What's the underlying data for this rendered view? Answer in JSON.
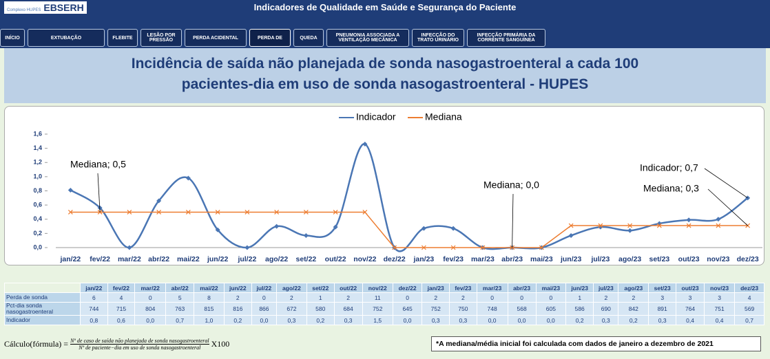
{
  "header": {
    "logo": "EBSERH",
    "logo_sub": "Complexo HUPES",
    "title": "Indicadores de Qualidade em Saúde e Segurança do Paciente"
  },
  "nav": [
    "INÍCIO",
    "EXTUBAÇÃO",
    "FLEBITE",
    "LESÃO POR PRESSÃO",
    "PERDA ACIDENTAL",
    "PERDA DE",
    "QUEDA",
    "PNEUMONIA ASSOCIADA A VENTILAÇÃO MECÂNICA",
    "INFECÇÃO DO TRATO URINÁRIO",
    "INFECÇÃO PRIMÁRIA DA CORRENTE SANGUÍNEA"
  ],
  "heading": "Incidência de saída não planejada de sonda nasogastroenteral a cada 100 pacientes-dia em uso de sonda nasogastroenteral - HUPES",
  "chart_data": {
    "type": "line",
    "categories": [
      "jan/22",
      "fev/22",
      "mar/22",
      "abr/22",
      "mai/22",
      "jun/22",
      "jul/22",
      "ago/22",
      "set/22",
      "out/22",
      "nov/22",
      "dez/22",
      "jan/23",
      "fev/23",
      "mar/23",
      "abr/23",
      "mai/23",
      "jun/23",
      "jul/23",
      "ago/23",
      "set/23",
      "out/23",
      "nov/23",
      "dez/23"
    ],
    "series": [
      {
        "name": "Indicador",
        "color": "#4a76b4",
        "values": [
          0.81,
          0.56,
          0,
          0.66,
          0.98,
          0.25,
          0,
          0.3,
          0.17,
          0.29,
          1.46,
          0,
          0.27,
          0.27,
          0,
          0,
          0,
          0.17,
          0.29,
          0.24,
          0.34,
          0.39,
          0.4,
          0.7
        ]
      },
      {
        "name": "Mediana",
        "color": "#ed7d31",
        "values": [
          0.5,
          0.5,
          0.5,
          0.5,
          0.5,
          0.5,
          0.5,
          0.5,
          0.5,
          0.5,
          0.5,
          0,
          0,
          0,
          0,
          0,
          0,
          0.31,
          0.31,
          0.31,
          0.31,
          0.31,
          0.31,
          0.31
        ]
      }
    ],
    "ylim": [
      0,
      1.6
    ],
    "yticks": [
      {
        "value": 0,
        "label": "0,0"
      },
      {
        "value": 0.2,
        "label": "0,2"
      },
      {
        "value": 0.4,
        "label": "0,4"
      },
      {
        "value": 0.6,
        "label": "0,6"
      },
      {
        "value": 0.8,
        "label": "0,8"
      },
      {
        "value": 1,
        "label": "1,0"
      },
      {
        "value": 1.2,
        "label": "1,2"
      },
      {
        "value": 1.4,
        "label": "1,4"
      },
      {
        "value": 1.6,
        "label": "1,6"
      }
    ],
    "grid": false,
    "legend": "top",
    "annotations": [
      "Mediana; 0,5",
      "Mediana; 0,0",
      "Indicador; 0,7",
      "Mediana; 0,3"
    ]
  },
  "table": {
    "row_labels": [
      "Perda de sonda",
      "Pct-dia sonda nasogastroenteral",
      "Indicador"
    ],
    "rows": [
      [
        6,
        4,
        0,
        5,
        8,
        2,
        0,
        2,
        1,
        2,
        11,
        0,
        2,
        2,
        0,
        0,
        0,
        1,
        2,
        2,
        3,
        3,
        3,
        4
      ],
      [
        744,
        715,
        804,
        763,
        815,
        816,
        866,
        672,
        580,
        684,
        752,
        645,
        752,
        750,
        748,
        568,
        605,
        586,
        690,
        842,
        891,
        764,
        751,
        569
      ],
      [
        "0,8",
        "0,6",
        "0,0",
        "0,7",
        "1,0",
        "0,2",
        "0,0",
        "0,3",
        "0,2",
        "0,3",
        "1,5",
        "0,0",
        "0,3",
        "0,3",
        "0,0",
        "0,0",
        "0,0",
        "0,2",
        "0,3",
        "0,2",
        "0,3",
        "0,4",
        "0,4",
        "0,7"
      ]
    ]
  },
  "formula": {
    "label": "Cálculo(fórmula) =",
    "numerator": "Nº de caso de saída não planejada de sonda nasogastroenteral",
    "denominator": "Nº de paciente−dia em uso de sonda nasogastroenteral",
    "factor": "X100"
  },
  "note": "*A mediana/média inicial foi calculada com dados de janeiro a dezembro de 2021"
}
